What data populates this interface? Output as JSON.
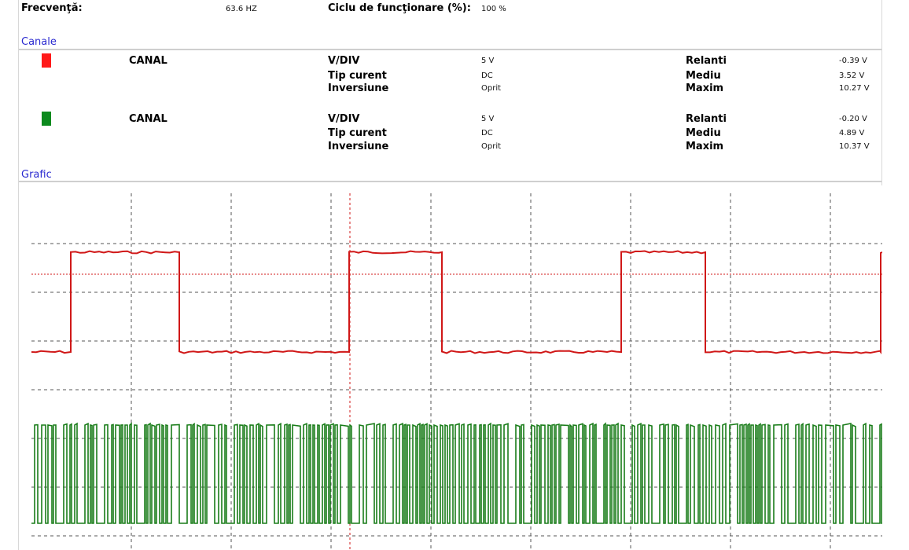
{
  "header": {
    "freq_label": "Frecvenţă:",
    "freq_value": "63.6 HZ",
    "duty_label": "Ciclu de funcţionare (%):",
    "duty_value": "100 %"
  },
  "channels_section": {
    "title": "Canale",
    "channels": [
      {
        "color": "#ff1a1a",
        "name": "CANAL",
        "vdiv_label": "V/DIV",
        "vdiv_value": "5 V",
        "coupling_label": "Tip curent",
        "coupling_value": "DC",
        "invert_label": "Inversiune",
        "invert_value": "Oprit",
        "idle_label": "Relanti",
        "idle_value": "-0.39 V",
        "avg_label": "Mediu",
        "avg_value": "3.52 V",
        "max_label": "Maxim",
        "max_value": "10.27 V"
      },
      {
        "color": "#0c8a1e",
        "name": "CANAL",
        "vdiv_label": "V/DIV",
        "vdiv_value": "5 V",
        "coupling_label": "Tip curent",
        "coupling_value": "DC",
        "invert_label": "Inversiune",
        "invert_value": "Oprit",
        "idle_label": "Relanti",
        "idle_value": "-0.20 V",
        "avg_label": "Mediu",
        "avg_value": "4.89 V",
        "max_label": "Maxim",
        "max_value": "10.37 V"
      }
    ]
  },
  "graph_section": {
    "title": "Grafic",
    "trace_colors": {
      "ch1": "#d01818",
      "ch2": "#1a7d1a",
      "grid": "#555555"
    }
  }
}
